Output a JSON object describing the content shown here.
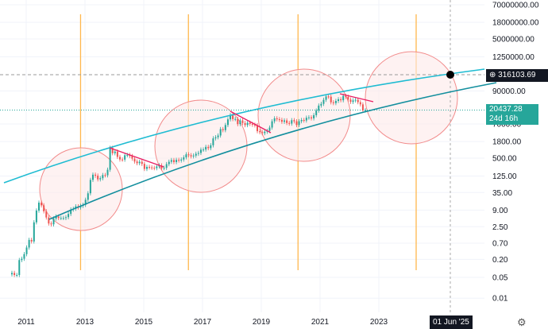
{
  "chart_data": {
    "type": "candlestick",
    "scale": "log",
    "interval": "monthly",
    "start": "2010-07",
    "closes": [
      0.07,
      0.06,
      0.06,
      0.19,
      0.21,
      0.3,
      0.5,
      0.9,
      0.8,
      3.5,
      8.7,
      16,
      13,
      8.2,
      5.1,
      3.2,
      3.0,
      4.7,
      5.5,
      4.9,
      4.9,
      4.9,
      5.2,
      6.7,
      9.4,
      10,
      12,
      11,
      12.5,
      13.5,
      20,
      33,
      93,
      139,
      129,
      97,
      106,
      135,
      133,
      204,
      1100,
      730,
      830,
      550,
      450,
      445,
      625,
      640,
      585,
      480,
      385,
      338,
      378,
      320,
      217,
      254,
      244,
      236,
      230,
      263,
      284,
      230,
      236,
      314,
      377,
      430,
      368,
      437,
      416,
      448,
      530,
      670,
      624,
      574,
      609,
      700,
      745,
      963,
      970,
      1190,
      1080,
      1350,
      2300,
      2500,
      2870,
      4700,
      4340,
      6450,
      10000,
      13800,
      10200,
      10300,
      6900,
      9200,
      7500,
      6400,
      7700,
      7000,
      6600,
      6300,
      4000,
      3700,
      3450,
      3850,
      4100,
      5300,
      8600,
      10800,
      10100,
      9600,
      8300,
      9200,
      7550,
      7200,
      9350,
      8600,
      6450,
      8650,
      9500,
      9150,
      11350,
      11650,
      10800,
      13800,
      19700,
      29000,
      33100,
      45200,
      58800,
      57700,
      37300,
      35000,
      41500,
      47100,
      43800,
      61300,
      57000,
      46300,
      38500,
      43200,
      45500,
      37700,
      31800,
      19950,
      20437.28
    ],
    "y_ticks": [
      70000000,
      18000000,
      5000000,
      1250000,
      90000,
      7000,
      1800,
      500,
      125,
      35,
      9,
      2.5,
      0.7,
      0.2,
      0.05,
      0.01
    ],
    "y_tick_labels": [
      "70000000.00",
      "18000000.00",
      "5000000.00",
      "1250000.00",
      "90000.00",
      "7000.00",
      "1800.00",
      "500.00",
      "125.00",
      "35.00",
      "9.00",
      "2.50",
      "0.70",
      "0.20",
      "0.05",
      "0.01"
    ],
    "x_ticks": [
      2011,
      2013,
      2015,
      2017,
      2019,
      2021,
      2023
    ],
    "x_tick_labels": [
      "2011",
      "2013",
      "2015",
      "2017",
      "2019",
      "2021",
      "2023"
    ],
    "halving_lines": [
      2012.85,
      2016.52,
      2020.25,
      2024.27
    ],
    "grid": true
  },
  "crosshair": {
    "price_label": "316103.69",
    "date_label": "01 Jun '25"
  },
  "last_price": {
    "value": "20437.28",
    "countdown": "24d 16h"
  },
  "colors": {
    "up": "#26a69a",
    "down": "#ef5350",
    "upper_curve": "#1fbcd2",
    "lower_curve": "#138f9e",
    "halving": "#ffb74d",
    "trend": "#e91e63",
    "circle": "#f28b8b"
  }
}
